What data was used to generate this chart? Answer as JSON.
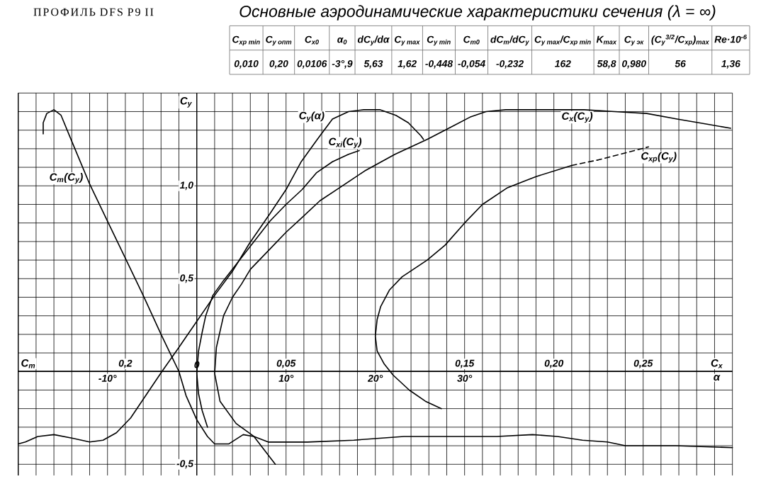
{
  "chart_data": [
    {
      "type": "line",
      "title": "Основные аэродинамические характеристики сечения (λ = ∞)",
      "annotations": [
        "ПРОФИЛЬ DFS P9 II",
        "C$_{xp min}$",
        "C$_{y опт}$",
        "C$_{x0}$",
        "α$_{0}$",
        "dC$_{y}$/dα",
        "C$_{y max}$",
        "C$_{y min}$",
        "C$_{m0}$",
        "dC$_{m}$/dC$_{y}$",
        "C$_{y max}$/C$_{xp min}$",
        "K$_{max}$",
        "C$_{y эк}$",
        "(C$_{y}$$^{3/2}$/C$_{xp}$)$_{max}$",
        "Re·10$^{-6}$",
        "0,010",
        "0,20",
        "0,0106",
        "-3°,9",
        "5,63",
        "1,62",
        "-0,448",
        "-0,054",
        "-0,232",
        "162",
        "58,8",
        "0,980",
        "56",
        "1,36"
      ],
      "xlabel": "α",
      "x2label": "C$_{x}$",
      "ylabel": "C$_{y}$",
      "xlim": [
        -20,
        60
      ],
      "xticks": [
        {
          "value": -20,
          "label": null
        },
        {
          "value": -18,
          "label": null
        },
        {
          "value": -16,
          "label": null
        },
        {
          "value": -14,
          "label": null
        },
        {
          "value": -12,
          "label": null
        },
        {
          "value": -10,
          "label": "-10°"
        },
        {
          "value": -8,
          "label": null
        },
        {
          "value": -6,
          "label": null
        },
        {
          "value": -4,
          "label": null
        },
        {
          "value": -2,
          "label": null
        },
        {
          "value": 0,
          "label": null
        },
        {
          "value": 2,
          "label": null
        },
        {
          "value": 4,
          "label": null
        },
        {
          "value": 6,
          "label": null
        },
        {
          "value": 8,
          "label": null
        },
        {
          "value": 10,
          "label": "10°"
        },
        {
          "value": 12,
          "label": null
        },
        {
          "value": 14,
          "label": null
        },
        {
          "value": 16,
          "label": null
        },
        {
          "value": 18,
          "label": null
        },
        {
          "value": 20,
          "label": "20°"
        },
        {
          "value": 22,
          "label": null
        },
        {
          "value": 24,
          "label": null
        },
        {
          "value": 26,
          "label": null
        },
        {
          "value": 28,
          "label": null
        },
        {
          "value": 30,
          "label": "30°"
        },
        {
          "value": 32,
          "label": null
        },
        {
          "value": 34,
          "label": null
        },
        {
          "value": 36,
          "label": null
        },
        {
          "value": 38,
          "label": null
        },
        {
          "value": 40,
          "label": null
        },
        {
          "value": 42,
          "label": null
        },
        {
          "value": 44,
          "label": null
        },
        {
          "value": 46,
          "label": null
        },
        {
          "value": 48,
          "label": null
        },
        {
          "value": 50,
          "label": null
        },
        {
          "value": 52,
          "label": null
        },
        {
          "value": 54,
          "label": null
        },
        {
          "value": 56,
          "label": null
        },
        {
          "value": 58,
          "label": null
        },
        {
          "value": 60,
          "label": null
        }
      ],
      "x2lim": [
        -0.1,
        0.3
      ],
      "x2ticks": [
        {
          "value": 0.05,
          "label": "0,05"
        },
        {
          "value": 0.15,
          "label": "0,15"
        },
        {
          "value": 0.2,
          "label": "0,20"
        },
        {
          "value": 0.25,
          "label": "0,25"
        }
      ],
      "ylim": [
        -0.56,
        1.5
      ],
      "yticks": [
        {
          "value": -0.5,
          "label": "-0,5"
        },
        {
          "value": -0.4,
          "label": null
        },
        {
          "value": -0.3,
          "label": null
        },
        {
          "value": -0.2,
          "label": null
        },
        {
          "value": -0.1,
          "label": null
        },
        {
          "value": 0,
          "label": null
        },
        {
          "value": 0.1,
          "label": null
        },
        {
          "value": 0.2,
          "label": null
        },
        {
          "value": 0.3,
          "label": null
        },
        {
          "value": 0.4,
          "label": null
        },
        {
          "value": 0.5,
          "label": "0,5"
        },
        {
          "value": 0.6,
          "label": null
        },
        {
          "value": 0.7,
          "label": null
        },
        {
          "value": 0.8,
          "label": null
        },
        {
          "value": 0.9,
          "label": null
        },
        {
          "value": 1.0,
          "label": "1,0"
        },
        {
          "value": 1.1,
          "label": null
        },
        {
          "value": 1.2,
          "label": null
        },
        {
          "value": 1.3,
          "label": null
        },
        {
          "value": 1.4,
          "label": null
        },
        {
          "value": 1.5,
          "label": null
        }
      ],
      "grid": true,
      "series": [
        {
          "name": "C$_{y}$(α)",
          "color": "#000000",
          "x": [
            -20,
            -19.2,
            -17.8,
            -16,
            -13.9,
            -12,
            -10.5,
            -9,
            -7.4,
            -6,
            -3.9,
            -2,
            0,
            2,
            4,
            5.9,
            8.2,
            10,
            11.7,
            13.5,
            15.2,
            17,
            18.7,
            20.5,
            22.3,
            23.7,
            25.1,
            25.4
          ],
          "values": [
            -0.39,
            -0.38,
            -0.35,
            -0.34,
            -0.36,
            -0.38,
            -0.37,
            -0.33,
            -0.25,
            -0.15,
            0,
            0.13,
            0.27,
            0.41,
            0.54,
            0.69,
            0.85,
            0.98,
            1.13,
            1.25,
            1.36,
            1.4,
            1.41,
            1.41,
            1.38,
            1.34,
            1.27,
            1.25
          ]
        },
        {
          "name": "C$_{xi}$(C$_{y}$)",
          "color": "#000000",
          "axis": "x2",
          "x": [
            0.006,
            0.003,
            0.001,
            0.0,
            0.001,
            0.003,
            0.005,
            0.009,
            0.015,
            0.028,
            0.041,
            0.05,
            0.059,
            0.067,
            0.076,
            0.085,
            0.091
          ],
          "values": [
            -0.3,
            -0.21,
            -0.12,
            -0.01,
            0.11,
            0.21,
            0.3,
            0.41,
            0.49,
            0.65,
            0.81,
            0.9,
            0.98,
            1.07,
            1.13,
            1.17,
            1.19
          ]
        },
        {
          "name": "C$_{x}$(C$_{y}$)",
          "color": "#000000",
          "axis": "x2",
          "x": [
            0.044,
            0.032,
            0.022,
            0.013,
            0.01,
            0.011,
            0.015,
            0.02,
            0.025,
            0.03,
            0.041,
            0.05,
            0.059,
            0.069,
            0.08,
            0.094,
            0.111,
            0.129,
            0.143,
            0.153,
            0.162,
            0.173,
            0.199,
            0.217,
            0.234,
            0.252,
            0.269,
            0.287,
            0.299
          ],
          "values": [
            -0.5,
            -0.35,
            -0.28,
            -0.16,
            -0.01,
            0.13,
            0.3,
            0.4,
            0.47,
            0.55,
            0.66,
            0.75,
            0.83,
            0.92,
            0.99,
            1.08,
            1.17,
            1.25,
            1.32,
            1.37,
            1.4,
            1.41,
            1.41,
            1.41,
            1.4,
            1.39,
            1.36,
            1.33,
            1.31
          ]
        },
        {
          "color": "#000000",
          "axis": "x2",
          "x": [
            0.137,
            0.128,
            0.119,
            0.11,
            0.105,
            0.101,
            0.1,
            0.101,
            0.103,
            0.108,
            0.115,
            0.129,
            0.139,
            0.15,
            0.16,
            0.174,
            0.19,
            0.21
          ],
          "values": [
            -0.2,
            -0.16,
            -0.1,
            -0.02,
            0.04,
            0.11,
            0.19,
            0.28,
            0.35,
            0.44,
            0.51,
            0.6,
            0.68,
            0.8,
            0.9,
            0.99,
            1.05,
            1.11
          ]
        },
        {
          "name": "C$_{xp}$(C$_{y}$)",
          "color": "#000000",
          "axis": "x2",
          "line_style": "dashed",
          "x": [
            0.21,
            0.225,
            0.253
          ],
          "values": [
            1.11,
            1.14,
            1.21
          ]
        }
      ]
    },
    {
      "type": "line",
      "xlabel": "C$_{m}$",
      "xlim": [
        0.5,
        -1.5
      ],
      "xticks": [
        {
          "value": 0,
          "label": "0"
        },
        {
          "value": 0.2,
          "label": "0,2"
        }
      ],
      "ylim": [
        -0.56,
        1.5
      ],
      "tick_labels": "x",
      "series": [
        {
          "name": "C$_{m}$(C$_{y}$)",
          "color": "#000000",
          "x": [
            0.43,
            0.43,
            0.42,
            0.4,
            0.38,
            0.35,
            0.3,
            0.25,
            0.2,
            0.15,
            0.1,
            0.05,
            0.03,
            0.0,
            -0.03,
            -0.05,
            -0.09,
            -0.13,
            -0.16,
            -0.2,
            -0.31,
            -0.44,
            -0.58,
            -0.71,
            -0.84,
            -0.94,
            -1.01,
            -1.08,
            -1.15,
            -1.2,
            -1.34,
            -1.5
          ],
          "values": [
            1.28,
            1.34,
            1.39,
            1.41,
            1.38,
            1.24,
            1.01,
            0.81,
            0.61,
            0.41,
            0.2,
            0.0,
            -0.13,
            -0.26,
            -0.35,
            -0.39,
            -0.39,
            -0.34,
            -0.35,
            -0.38,
            -0.38,
            -0.37,
            -0.35,
            -0.35,
            -0.35,
            -0.34,
            -0.35,
            -0.37,
            -0.38,
            -0.4,
            -0.4,
            -0.41
          ]
        }
      ]
    }
  ]
}
